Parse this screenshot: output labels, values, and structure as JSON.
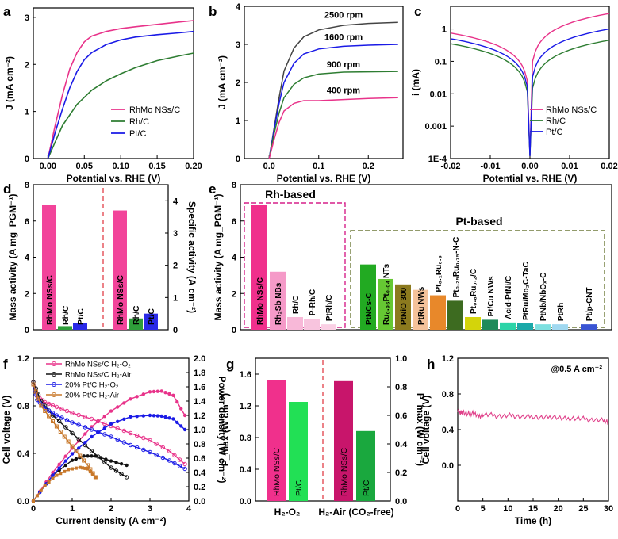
{
  "figure": {
    "background": "#ffffff"
  },
  "chart_data": [
    {
      "id": "a",
      "panel_label": "a",
      "type": "line",
      "xlabel": "Potential vs. RHE (V)",
      "ylabel": "J (mA cm⁻²)",
      "xlim": [
        -0.02,
        0.2
      ],
      "ylim": [
        0,
        3.2
      ],
      "xticks": [
        0.0,
        0.05,
        0.1,
        0.15,
        0.2
      ],
      "xtick_labels": [
        "0.00",
        "0.05",
        "0.10",
        "0.15",
        "0.20"
      ],
      "yticks": [
        0,
        1,
        2,
        3
      ],
      "ytick_labels": [
        "0",
        "1",
        "2",
        "3"
      ],
      "legend": {
        "position": "bottom-right"
      },
      "series": [
        {
          "name": "RhMo NSs/C",
          "color": "#e8338a",
          "x": [
            0,
            0.01,
            0.02,
            0.03,
            0.04,
            0.05,
            0.06,
            0.08,
            0.1,
            0.12,
            0.15,
            0.18,
            0.2
          ],
          "y": [
            0,
            0.7,
            1.35,
            1.9,
            2.25,
            2.48,
            2.6,
            2.7,
            2.76,
            2.8,
            2.85,
            2.9,
            2.93
          ]
        },
        {
          "name": "Rh/C",
          "color": "#2e7d32",
          "x": [
            0,
            0.01,
            0.02,
            0.04,
            0.06,
            0.08,
            0.1,
            0.12,
            0.15,
            0.18,
            0.2
          ],
          "y": [
            0,
            0.35,
            0.7,
            1.15,
            1.45,
            1.65,
            1.8,
            1.93,
            2.08,
            2.18,
            2.24
          ]
        },
        {
          "name": "Pt/C",
          "color": "#1a1ae6",
          "x": [
            0,
            0.01,
            0.02,
            0.03,
            0.04,
            0.05,
            0.06,
            0.08,
            0.1,
            0.12,
            0.15,
            0.18,
            0.2
          ],
          "y": [
            0,
            0.55,
            1.05,
            1.5,
            1.85,
            2.1,
            2.25,
            2.42,
            2.52,
            2.58,
            2.63,
            2.67,
            2.7
          ]
        }
      ]
    },
    {
      "id": "b",
      "panel_label": "b",
      "type": "line",
      "xlabel": "Potential vs. RHE (V)",
      "ylabel": "J (mA cm⁻²)",
      "xlim": [
        -0.05,
        0.27
      ],
      "ylim": [
        0,
        4
      ],
      "xticks": [
        0.0,
        0.1,
        0.2
      ],
      "xtick_labels": [
        "0.0",
        "0.1",
        "0.2"
      ],
      "yticks": [
        0,
        1,
        2,
        3,
        4
      ],
      "ytick_labels": [
        "0",
        "1",
        "2",
        "3",
        "4"
      ],
      "series": [
        {
          "name": "2500 rpm",
          "color": "#444444",
          "x": [
            0,
            0.01,
            0.02,
            0.03,
            0.05,
            0.07,
            0.1,
            0.15,
            0.2,
            0.26
          ],
          "y": [
            0,
            0.8,
            1.6,
            2.3,
            2.9,
            3.2,
            3.38,
            3.5,
            3.55,
            3.58
          ]
        },
        {
          "name": "1600 rpm",
          "color": "#1a1ae6",
          "x": [
            0,
            0.01,
            0.02,
            0.03,
            0.05,
            0.07,
            0.1,
            0.15,
            0.2,
            0.26
          ],
          "y": [
            0,
            0.75,
            1.45,
            2.0,
            2.5,
            2.75,
            2.88,
            2.95,
            2.98,
            3.0
          ]
        },
        {
          "name": "900 rpm",
          "color": "#2e7d32",
          "x": [
            0,
            0.01,
            0.02,
            0.03,
            0.05,
            0.07,
            0.1,
            0.15,
            0.2,
            0.26
          ],
          "y": [
            0,
            0.65,
            1.2,
            1.6,
            1.95,
            2.12,
            2.22,
            2.27,
            2.28,
            2.29
          ]
        },
        {
          "name": "400 rpm",
          "color": "#e8338a",
          "x": [
            0,
            0.01,
            0.02,
            0.03,
            0.05,
            0.07,
            0.1,
            0.15,
            0.2,
            0.26
          ],
          "y": [
            0,
            0.5,
            0.95,
            1.25,
            1.45,
            1.52,
            1.52,
            1.55,
            1.58,
            1.6
          ]
        }
      ]
    },
    {
      "id": "c",
      "panel_label": "c",
      "type": "line",
      "xlabel": "Potential vs. RHE (V)",
      "ylabel": "i (mA)",
      "xlim": [
        -0.02,
        0.02
      ],
      "ylim": [
        0.0001,
        5
      ],
      "yscale": "log",
      "xticks": [
        -0.02,
        -0.01,
        0,
        0.01,
        0.02
      ],
      "xtick_labels": [
        "-0.02",
        "-0.01",
        "0.00",
        "0.01",
        "0.02"
      ],
      "yticks": [
        0.0001,
        0.001,
        0.01,
        0.1,
        1
      ],
      "ytick_labels": [
        "1E-4",
        "0.001",
        "0.01",
        "0.1",
        "1"
      ],
      "legend": {
        "position": "bottom-right"
      },
      "series": [
        {
          "name": "RhMo NSs/C",
          "color": "#e8338a",
          "left_end": 0.75,
          "right_end": 3.0
        },
        {
          "name": "Rh/C",
          "color": "#2e7d32",
          "left_end": 0.35,
          "right_end": 0.45
        },
        {
          "name": "Pt/C",
          "color": "#1a1ae6",
          "left_end": 0.5,
          "right_end": 1.0
        }
      ]
    },
    {
      "id": "d",
      "panel_label": "d",
      "type": "bar",
      "ylabel_left": "Mass activity (A mg_PGM⁻¹)",
      "ylabel_right": "Specific activity (A cm⁻²)",
      "ylim_left": [
        0,
        8
      ],
      "yticks_left": [
        0,
        2,
        4,
        6,
        8
      ],
      "ylim_right": [
        0,
        4.5
      ],
      "yticks_right": [
        0,
        1,
        2,
        3,
        4
      ],
      "bars": [
        {
          "label": "RhMo NSs/C",
          "value": 6.9,
          "axis": "left",
          "color": "#f2449a"
        },
        {
          "label": "Rh/C",
          "value": 0.2,
          "axis": "left",
          "color": "#2e9e3a"
        },
        {
          "label": "Pt/C",
          "value": 0.35,
          "axis": "left",
          "color": "#2a2ae8"
        },
        {
          "label": "RhMo NSs/C",
          "value": 3.7,
          "axis": "right",
          "color": "#f2449a"
        },
        {
          "label": "Rh/C",
          "value": 0.35,
          "axis": "right",
          "color": "#2e9e3a"
        },
        {
          "label": "Pt/C",
          "value": 0.5,
          "axis": "right",
          "color": "#2a2ae8"
        }
      ]
    },
    {
      "id": "e",
      "panel_label": "e",
      "type": "bar",
      "ylabel": "Mass activity (A mg_PGM⁻¹)",
      "ylim": [
        0,
        8
      ],
      "yticks": [
        0,
        2,
        4,
        6,
        8
      ],
      "group_labels": {
        "rh": "Rh-based",
        "pt": "Pt-based"
      },
      "bars": [
        {
          "label": "RhMo NSs/C",
          "value": 6.9,
          "color": "#f0308c"
        },
        {
          "label": "Rh₂Sb NBs",
          "value": 3.2,
          "color": "#f59ac8"
        },
        {
          "label": "Rh/C",
          "value": 0.7,
          "color": "#f8b8d8"
        },
        {
          "label": "P-Rh/C",
          "value": 0.6,
          "color": "#f8c4de"
        },
        {
          "label": "PtRh/C",
          "value": 0.3,
          "color": "#fad0e4"
        },
        {
          "label": "PtNCs-C",
          "value": 3.6,
          "color": "#22aa22"
        },
        {
          "label": "Ru₀.₉₆Pt₀.₀₄ NTs",
          "value": 2.8,
          "color": "#66c833"
        },
        {
          "label": "PtNiO 300",
          "value": 2.5,
          "color": "#8c7a1e"
        },
        {
          "label": "PtRu NWs",
          "value": 2.2,
          "color": "#f4c29a"
        },
        {
          "label": "Pt₀.₁Ru₀.₉",
          "value": 1.9,
          "color": "#e8882a"
        },
        {
          "label": "Pt₀.₂₅Ru₀.₇₅-N-C",
          "value": 1.6,
          "color": "#3d6b20"
        },
        {
          "label": "Pt₀.₈Ru₀.₂/C",
          "value": 0.7,
          "color": "#d4d40a"
        },
        {
          "label": "Pt/Cu NWs",
          "value": 0.55,
          "color": "#1f8a5a"
        },
        {
          "label": "Acid-PtNi/C",
          "value": 0.4,
          "color": "#2bd4a8"
        },
        {
          "label": "PtRu/Mo₂C-TaC",
          "value": 0.35,
          "color": "#1aa8a8"
        },
        {
          "label": "PtNb/NbOₓ-C",
          "value": 0.3,
          "color": "#7de0e0"
        },
        {
          "label": "PtRh",
          "value": 0.3,
          "color": "#a0d8f0"
        },
        {
          "label": "Pt/p-CNT",
          "value": 0.3,
          "color": "#3a55d4"
        }
      ]
    },
    {
      "id": "f",
      "panel_label": "f",
      "type": "line",
      "xlabel": "Current density (A cm⁻²)",
      "ylabel_left": "Cell voltage (V)",
      "ylabel_right": "Power density (W cm⁻²)",
      "xlim": [
        0,
        4
      ],
      "ylim_left": [
        0,
        1.2
      ],
      "ylim_right": [
        0,
        2.0
      ],
      "xticks": [
        0,
        1,
        2,
        3,
        4
      ],
      "yticks_left": [
        0,
        0.4,
        0.8,
        1.2
      ],
      "yticks_right": [
        0,
        0.2,
        0.4,
        0.6,
        0.8,
        1.0,
        1.2,
        1.4,
        1.6,
        1.8,
        2.0
      ],
      "ytick_labels_left": [
        "0.0",
        "0.4",
        "0.8",
        "1.2"
      ],
      "ytick_labels_right": [
        "0.0",
        "0.2",
        "0.4",
        "0.6",
        "0.8",
        "1.0",
        "1.2",
        "1.4",
        "1.6",
        "1.8",
        "2.0"
      ],
      "legend": {
        "position": "top-left"
      },
      "series": [
        {
          "name": "RhMo NSs/C H₂-O₂",
          "color": "#e8338a",
          "marker": "circle",
          "polarization_x": [
            0,
            0.1,
            0.3,
            0.6,
            1.0,
            1.5,
            2.0,
            2.5,
            3.0,
            3.5,
            3.9
          ],
          "polarization_y": [
            1.0,
            0.88,
            0.83,
            0.79,
            0.74,
            0.69,
            0.63,
            0.57,
            0.51,
            0.42,
            0.31
          ],
          "power_x": [
            0,
            0.5,
            1.0,
            1.5,
            2.0,
            2.5,
            3.0,
            3.3,
            3.6,
            3.9
          ],
          "power_y": [
            0,
            0.4,
            0.74,
            1.04,
            1.26,
            1.43,
            1.53,
            1.54,
            1.48,
            1.2
          ]
        },
        {
          "name": "RhMo NSs/C H₂-Air",
          "color": "#111111",
          "marker": "circle",
          "polarization_x": [
            0,
            0.2,
            0.5,
            1.0,
            1.5,
            2.0,
            2.4
          ],
          "polarization_y": [
            1.0,
            0.84,
            0.72,
            0.57,
            0.42,
            0.28,
            0.2
          ],
          "power_x": [
            0,
            0.5,
            1.0,
            1.3,
            1.6,
            2.0,
            2.4
          ],
          "power_y": [
            0,
            0.36,
            0.57,
            0.63,
            0.63,
            0.56,
            0.5
          ]
        },
        {
          "name": "20% Pt/C H₂-O₂",
          "color": "#1a1ae6",
          "marker": "circle",
          "polarization_x": [
            0,
            0.1,
            0.3,
            0.6,
            1.0,
            1.5,
            2.0,
            2.5,
            3.0,
            3.5,
            3.9
          ],
          "polarization_y": [
            0.98,
            0.85,
            0.78,
            0.72,
            0.66,
            0.6,
            0.54,
            0.47,
            0.41,
            0.34,
            0.27
          ],
          "power_x": [
            0,
            0.5,
            1.0,
            1.5,
            2.0,
            2.5,
            3.0,
            3.3,
            3.6,
            3.9
          ],
          "power_y": [
            0,
            0.36,
            0.66,
            0.9,
            1.08,
            1.18,
            1.2,
            1.19,
            1.15,
            1.0
          ]
        },
        {
          "name": "20% Pt/C H₂-Air",
          "color": "#c8782a",
          "marker": "square",
          "polarization_x": [
            0,
            0.2,
            0.5,
            0.8,
            1.1,
            1.4,
            1.6
          ],
          "polarization_y": [
            0.98,
            0.8,
            0.67,
            0.54,
            0.42,
            0.3,
            0.2
          ],
          "power_x": [
            0,
            0.3,
            0.6,
            0.9,
            1.2,
            1.4,
            1.6
          ],
          "power_y": [
            0,
            0.22,
            0.36,
            0.44,
            0.47,
            0.45,
            0.33
          ]
        }
      ]
    },
    {
      "id": "g",
      "panel_label": "g",
      "type": "bar",
      "ylabel_left": "P_max (W cm⁻²)",
      "ylabel_right": "P_max (W cm⁻²)",
      "ylim_left": [
        0,
        1.8
      ],
      "yticks_left": [
        0,
        0.4,
        0.8,
        1.2,
        1.6
      ],
      "ytick_labels_left": [
        "0.0",
        "0.4",
        "0.8",
        "1.2",
        "1.6"
      ],
      "ylim_right": [
        0,
        1.0
      ],
      "yticks_right": [
        0,
        0.2,
        0.4,
        0.6,
        0.8,
        1.0
      ],
      "ytick_labels_right": [
        "0.0",
        "0.2",
        "0.4",
        "0.6",
        "0.8",
        "1.0"
      ],
      "categories": [
        "H₂-O₂",
        "H₂-Air (CO₂-free)"
      ],
      "bars": [
        {
          "label": "RhMo NSs/C",
          "value": 1.52,
          "axis": "left",
          "color": "#f0308c"
        },
        {
          "label": "Pt/C",
          "value": 1.25,
          "axis": "left",
          "color": "#22e055"
        },
        {
          "label": "RhMo NSs/C",
          "value": 0.84,
          "axis": "right",
          "color": "#c8156b"
        },
        {
          "label": "Pt/C",
          "value": 0.49,
          "axis": "right",
          "color": "#1aa83e"
        }
      ]
    },
    {
      "id": "h",
      "panel_label": "h",
      "type": "line",
      "xlabel": "Time (h)",
      "ylabel": "Cell voltage (V)",
      "xlim": [
        0,
        30
      ],
      "ylim": [
        -0.4,
        1.2
      ],
      "xticks": [
        0,
        5,
        10,
        15,
        20,
        25,
        30
      ],
      "yticks": [
        0,
        0.4,
        0.8,
        1.2
      ],
      "ytick_labels": [
        "0.0",
        "0.4",
        "0.8",
        "1.2"
      ],
      "annotation": "@0.5 A cm⁻²",
      "series": [
        {
          "name": "Cell voltage",
          "color": "#e0408a",
          "x": [
            0,
            0.5,
            1,
            2,
            3,
            4,
            5,
            7,
            9,
            11,
            13,
            15,
            17,
            19,
            21,
            23,
            25,
            27,
            29,
            30
          ],
          "y": [
            0.63,
            0.58,
            0.6,
            0.57,
            0.59,
            0.55,
            0.57,
            0.56,
            0.55,
            0.56,
            0.54,
            0.55,
            0.53,
            0.55,
            0.52,
            0.53,
            0.52,
            0.51,
            0.5,
            0.49
          ]
        }
      ]
    }
  ]
}
